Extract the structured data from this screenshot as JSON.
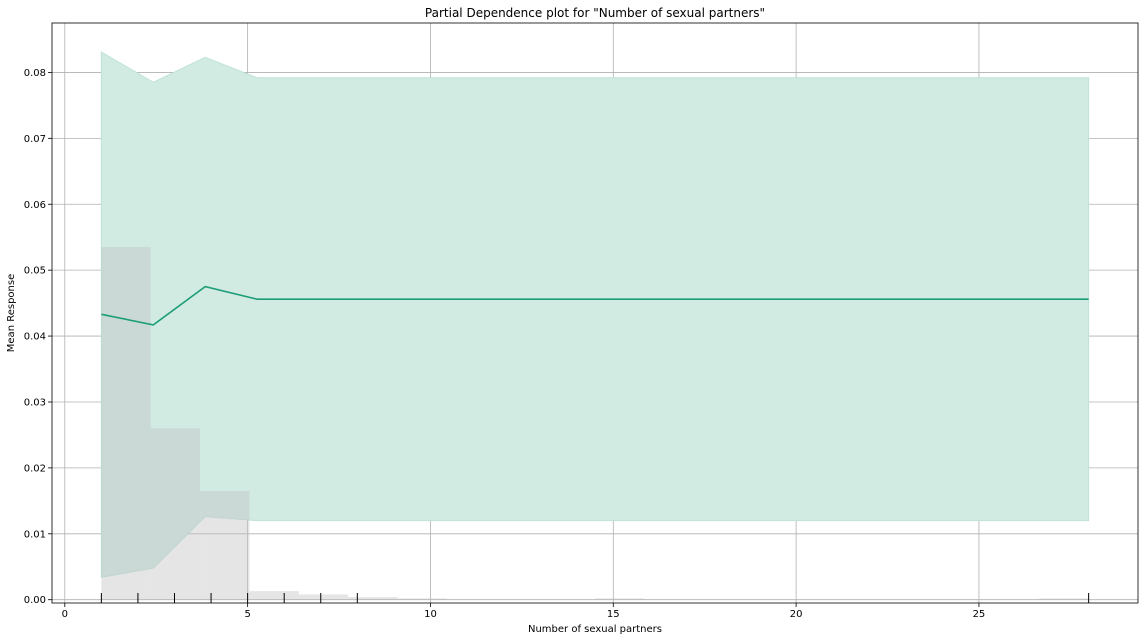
{
  "chart_data": {
    "type": "line",
    "title": "Partial Dependence plot for \"Number of sexual partners\"",
    "xlabel": "Number of sexual partners",
    "ylabel": "Mean Response",
    "xlim": [
      -0.35,
      29.35
    ],
    "ylim": [
      -0.0005,
      0.0875
    ],
    "x_ticks": [
      0,
      5,
      10,
      15,
      20,
      25
    ],
    "y_ticks": [
      0.0,
      0.01,
      0.02,
      0.03,
      0.04,
      0.05,
      0.06,
      0.07,
      0.08
    ],
    "grid": true,
    "colors": {
      "line": "#1b9e77",
      "band": "#d1ebe3",
      "band_edge": "#bfe3d6",
      "hist": "#c0c0c0",
      "grid": "#b0b0b0",
      "rug": "#000000"
    },
    "series": [
      {
        "x": [
          1.0,
          2.42,
          3.84,
          5.26,
          28.0
        ],
        "mean": [
          0.0433,
          0.0417,
          0.0475,
          0.0456,
          0.0456
        ],
        "lower": [
          0.0034,
          0.0048,
          0.0126,
          0.012,
          0.012
        ],
        "upper": [
          0.0831,
          0.0785,
          0.0823,
          0.0792,
          0.0792
        ]
      }
    ],
    "histogram": {
      "bins": [
        {
          "x0": 1.0,
          "x1": 2.35,
          "height": 0.0535
        },
        {
          "x0": 2.35,
          "x1": 3.7,
          "height": 0.026
        },
        {
          "x0": 3.7,
          "x1": 5.05,
          "height": 0.0165
        },
        {
          "x0": 5.05,
          "x1": 6.4,
          "height": 0.0013
        },
        {
          "x0": 6.4,
          "x1": 7.75,
          "height": 0.0008
        },
        {
          "x0": 7.75,
          "x1": 9.1,
          "height": 0.0004
        },
        {
          "x0": 9.1,
          "x1": 10.45,
          "height": 0.0002
        },
        {
          "x0": 14.5,
          "x1": 15.85,
          "height": 0.0002
        },
        {
          "x0": 26.65,
          "x1": 28.0,
          "height": 0.0002
        }
      ]
    },
    "rug": [
      1,
      2,
      3,
      4,
      5,
      6,
      7,
      8,
      28
    ]
  }
}
